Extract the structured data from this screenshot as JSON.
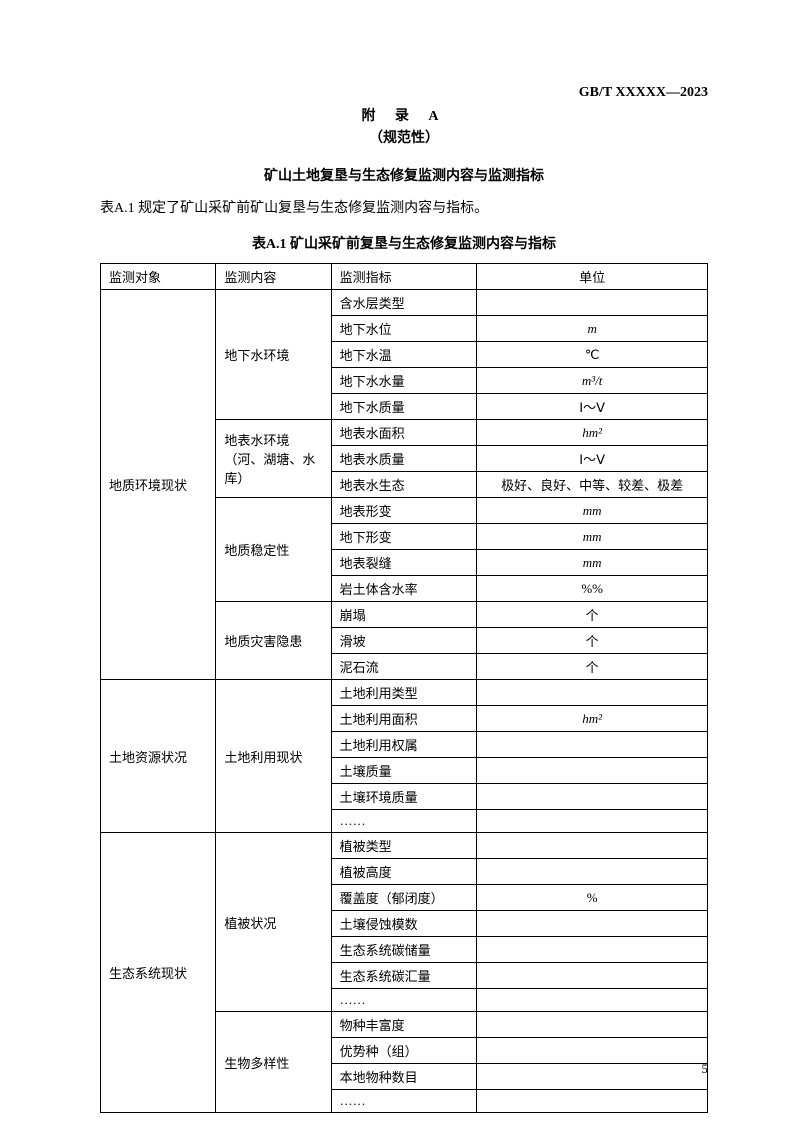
{
  "doc_id": "GB/T XXXXX—2023",
  "appendix_header": "附  录  A",
  "appendix_sub": "（规范性）",
  "section_title": "矿山土地复垦与生态修复监测内容与监测指标",
  "intro": "表A.1 规定了矿山采矿前矿山复垦与生态修复监测内容与指标。",
  "table_title": "表A.1 矿山采矿前复垦与生态修复监测内容与指标",
  "headers": {
    "c1": "监测对象",
    "c2": "监测内容",
    "c3": "监测指标",
    "c4": "单位"
  },
  "groups": [
    {
      "obj": "地质环境现状",
      "contents": [
        {
          "name": "地下水环境",
          "rows": [
            {
              "ind": "含水层类型",
              "unit": ""
            },
            {
              "ind": "地下水位",
              "unit": "m",
              "italic": true
            },
            {
              "ind": "地下水温",
              "unit": "℃"
            },
            {
              "ind": "地下水水量",
              "unit": "m³/t",
              "italic": true
            },
            {
              "ind": "地下水质量",
              "unit": "Ⅰ～Ⅴ"
            }
          ]
        },
        {
          "name": "地表水环境\n（河、湖塘、水库）",
          "rows": [
            {
              "ind": "地表水面积",
              "unit": "hm²",
              "italic": true
            },
            {
              "ind": "地表水质量",
              "unit": "Ⅰ～Ⅴ"
            },
            {
              "ind": "地表水生态",
              "unit": "极好、良好、中等、较差、极差"
            }
          ]
        },
        {
          "name": "地质稳定性",
          "rows": [
            {
              "ind": "地表形变",
              "unit": "mm",
              "italic": true
            },
            {
              "ind": "地下形变",
              "unit": "mm",
              "italic": true
            },
            {
              "ind": "地表裂缝",
              "unit": "mm",
              "italic": true
            },
            {
              "ind": "岩土体含水率",
              "unit": "%%"
            }
          ]
        },
        {
          "name": "地质灾害隐患",
          "rows": [
            {
              "ind": "崩塌",
              "unit": "个"
            },
            {
              "ind": "滑坡",
              "unit": "个"
            },
            {
              "ind": "泥石流",
              "unit": "个"
            }
          ]
        }
      ]
    },
    {
      "obj": "土地资源状况",
      "contents": [
        {
          "name": "土地利用现状",
          "rows": [
            {
              "ind": "土地利用类型",
              "unit": ""
            },
            {
              "ind": "土地利用面积",
              "unit": "hm²",
              "italic": true
            },
            {
              "ind": "土地利用权属",
              "unit": ""
            },
            {
              "ind": "土壤质量",
              "unit": ""
            },
            {
              "ind": "土壤环境质量",
              "unit": ""
            },
            {
              "ind": "……",
              "unit": ""
            }
          ]
        }
      ]
    },
    {
      "obj": "生态系统现状",
      "contents": [
        {
          "name": "植被状况",
          "rows": [
            {
              "ind": "植被类型",
              "unit": ""
            },
            {
              "ind": "植被高度",
              "unit": ""
            },
            {
              "ind": "覆盖度（郁闭度）",
              "unit": "%"
            },
            {
              "ind": "土壤侵蚀模数",
              "unit": ""
            },
            {
              "ind": "生态系统碳储量",
              "unit": ""
            },
            {
              "ind": "生态系统碳汇量",
              "unit": ""
            },
            {
              "ind": "……",
              "unit": ""
            }
          ]
        },
        {
          "name": "生物多样性",
          "rows": [
            {
              "ind": "物种丰富度",
              "unit": ""
            },
            {
              "ind": "优势种（组）",
              "unit": ""
            },
            {
              "ind": "本地物种数目",
              "unit": ""
            },
            {
              "ind": "……",
              "unit": ""
            }
          ]
        }
      ]
    }
  ],
  "page_num": "5"
}
